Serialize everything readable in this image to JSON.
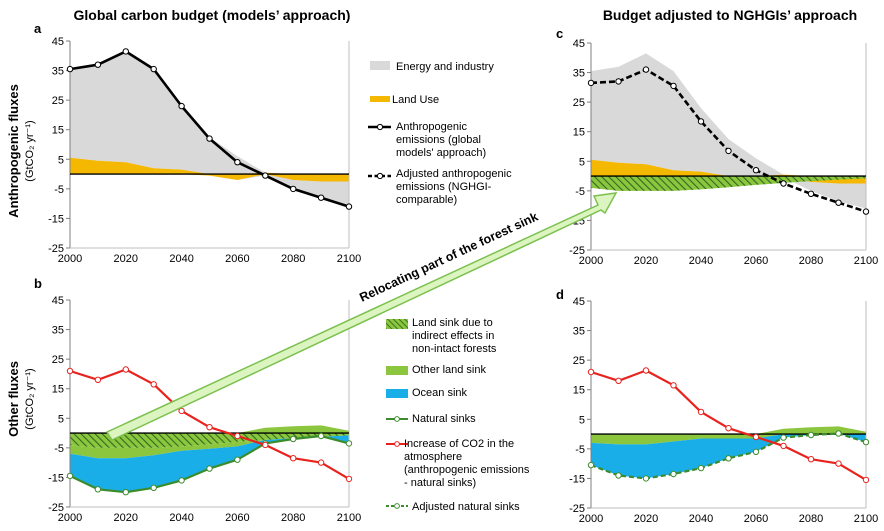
{
  "titles": {
    "left": "Global carbon budget (models’ approach)",
    "right": "Budget adjusted to NGHGIs’ approach"
  },
  "panel_labels": {
    "a": "a",
    "b": "b",
    "c": "c",
    "d": "d"
  },
  "ylabels": {
    "top_main": "Anthropogenic fluxes",
    "top_sub": "(GtCO₂ yr⁻¹)",
    "bottom_main": "Other fluxes",
    "bottom_sub": "(GtCO₂ yr⁻¹)"
  },
  "arrow_label": "Relocating part of the forest sink",
  "legend": {
    "energy": "Energy and industry",
    "land_use": "Land Use",
    "anthro": [
      "Anthropogenic",
      "emissions (global",
      "models' approach)"
    ],
    "adj_anthro": [
      "Adjusted anthropogenic",
      "emissions (NGHGI-",
      "comparable)"
    ],
    "land_sink": [
      "Land sink due to",
      "indirect effects in",
      "non-intact forests"
    ],
    "other_land": "Other land sink",
    "ocean": "Ocean sink",
    "natural": "Natural sinks",
    "increase": [
      "Increase of CO2 in the",
      "atmosphere",
      "(anthropogenic emissions",
      "- natural sinks)"
    ],
    "adj_natural": "Adjusted natural sinks"
  },
  "colors": {
    "energy": "#d9d9d9",
    "land_use": "#f5b800",
    "other_land": "#8cc63f",
    "ocean": "#1aaee8",
    "increase": "#e8231e",
    "natural_line": "#3c8c2c",
    "arrow_fill": "#dcf5c0",
    "arrow_stroke": "#7cc050"
  },
  "chart_data": [
    {
      "panel": "a",
      "type": "area",
      "title": "Global carbon budget (models’ approach)",
      "ylabel": "Anthropogenic fluxes (GtCO₂ yr⁻¹)",
      "xlim": [
        2000,
        2100
      ],
      "ylim": [
        -25,
        45
      ],
      "xticks": [
        2000,
        2020,
        2040,
        2060,
        2080,
        2100
      ],
      "yticks": [
        45,
        35,
        25,
        15,
        5,
        -5,
        -15,
        -25
      ],
      "x": [
        2000,
        2010,
        2020,
        2030,
        2040,
        2050,
        2060,
        2070,
        2080,
        2090,
        2100
      ],
      "series": [
        {
          "name": "Energy and industry",
          "values": [
            30,
            32.5,
            37.5,
            33.5,
            21.5,
            12.5,
            6,
            -0.5,
            -3,
            -6,
            -8.5
          ]
        },
        {
          "name": "Land Use",
          "values": [
            5.5,
            4.5,
            4,
            2,
            1.5,
            -0.5,
            -2,
            0.5,
            -2,
            -2.5,
            -2.5
          ]
        },
        {
          "name": "Anthropogenic emissions (global models' approach)",
          "values": [
            35.5,
            37,
            41.5,
            35.5,
            23,
            12,
            4,
            -0.5,
            -5,
            -8,
            -11
          ]
        }
      ]
    },
    {
      "panel": "b",
      "type": "area",
      "ylabel": "Other fluxes (GtCO₂ yr⁻¹)",
      "xlim": [
        2000,
        2100
      ],
      "ylim": [
        -25,
        45
      ],
      "xticks": [
        2000,
        2020,
        2040,
        2060,
        2080,
        2100
      ],
      "yticks": [
        45,
        35,
        25,
        15,
        5,
        -5,
        -15,
        -25
      ],
      "x": [
        2000,
        2010,
        2020,
        2030,
        2040,
        2050,
        2060,
        2070,
        2080,
        2090,
        2100
      ],
      "series": [
        {
          "name": "Land sink due to indirect effects in non-intact forests",
          "values": [
            -4,
            -5,
            -5,
            -5,
            -4.5,
            -3.8,
            -3,
            -2.3,
            -1.7,
            -1.2,
            -0.8
          ]
        },
        {
          "name": "Other land sink",
          "values": [
            -3,
            -3.5,
            -3.5,
            -2.5,
            -1.5,
            -1.5,
            -1.5,
            1.8,
            2.3,
            2.6,
            0.8
          ]
        },
        {
          "name": "Ocean sink",
          "values": [
            -7.5,
            -10.5,
            -11.5,
            -10.5,
            -10,
            -6.7,
            -4.5,
            -3,
            -2.5,
            -2.3,
            -3.5
          ]
        },
        {
          "name": "Natural sinks",
          "values": [
            -14.5,
            -19,
            -20,
            -18.5,
            -16,
            -12,
            -9,
            -3.5,
            -2,
            -1,
            -3.5
          ]
        },
        {
          "name": "Increase of CO2 in the atmosphere (anthropogenic emissions - natural sinks)",
          "values": [
            21,
            18,
            21.5,
            16.5,
            7.5,
            2,
            -1,
            -4,
            -8.5,
            -10,
            -15.5
          ]
        }
      ]
    },
    {
      "panel": "c",
      "type": "area",
      "title": "Budget adjusted to NGHGIs’ approach",
      "xlim": [
        2000,
        2100
      ],
      "ylim": [
        -25,
        45
      ],
      "xticks": [
        2000,
        2020,
        2040,
        2060,
        2080,
        2100
      ],
      "yticks": [
        45,
        35,
        25,
        15,
        5,
        -5,
        -15,
        -25
      ],
      "x": [
        2000,
        2010,
        2020,
        2030,
        2040,
        2050,
        2060,
        2070,
        2080,
        2090,
        2100
      ],
      "series": [
        {
          "name": "Energy and industry",
          "values": [
            30,
            32.5,
            37.5,
            33.5,
            21.5,
            12.5,
            6,
            -0.5,
            -3,
            -6,
            -8.5
          ]
        },
        {
          "name": "Land Use",
          "values": [
            5.5,
            4.5,
            4,
            2,
            1.5,
            -0.5,
            -2,
            0.5,
            -2,
            -2.5,
            -2.5
          ]
        },
        {
          "name": "Land sink due to indirect effects in non-intact forests",
          "values": [
            -4,
            -5,
            -5,
            -5,
            -4.5,
            -3.8,
            -3,
            -2.3,
            -1.7,
            -1.2,
            -0.8
          ]
        },
        {
          "name": "Adjusted anthropogenic emissions (NGHGI-comparable)",
          "values": [
            31.5,
            32,
            36,
            30.5,
            18.5,
            8.5,
            2,
            -2.5,
            -6,
            -9,
            -12
          ]
        }
      ]
    },
    {
      "panel": "d",
      "type": "area",
      "xlim": [
        2000,
        2100
      ],
      "ylim": [
        -25,
        45
      ],
      "xticks": [
        2000,
        2020,
        2040,
        2060,
        2080,
        2100
      ],
      "yticks": [
        45,
        35,
        25,
        15,
        5,
        -5,
        -15,
        -25
      ],
      "x": [
        2000,
        2010,
        2020,
        2030,
        2040,
        2050,
        2060,
        2070,
        2080,
        2090,
        2100
      ],
      "series": [
        {
          "name": "Other land sink",
          "values": [
            -3,
            -3.5,
            -3.5,
            -2.5,
            -1.5,
            -1.5,
            -1.5,
            1.8,
            2.3,
            2.6,
            0.8
          ]
        },
        {
          "name": "Ocean sink",
          "values": [
            -7.5,
            -10.5,
            -11.5,
            -10.5,
            -10,
            -6.7,
            -4.5,
            -3,
            -2.5,
            -2.3,
            -3.5
          ]
        },
        {
          "name": "Adjusted natural sinks",
          "values": [
            -10.5,
            -14,
            -15,
            -13.5,
            -11.5,
            -8.2,
            -6,
            -1.2,
            -0.3,
            0.2,
            -2.7
          ]
        },
        {
          "name": "Increase of CO2 in the atmosphere (anthropogenic emissions - natural sinks)",
          "values": [
            21,
            18,
            21.5,
            16.5,
            7.5,
            2,
            -1,
            -4,
            -8.5,
            -10,
            -15.5
          ]
        }
      ]
    }
  ]
}
